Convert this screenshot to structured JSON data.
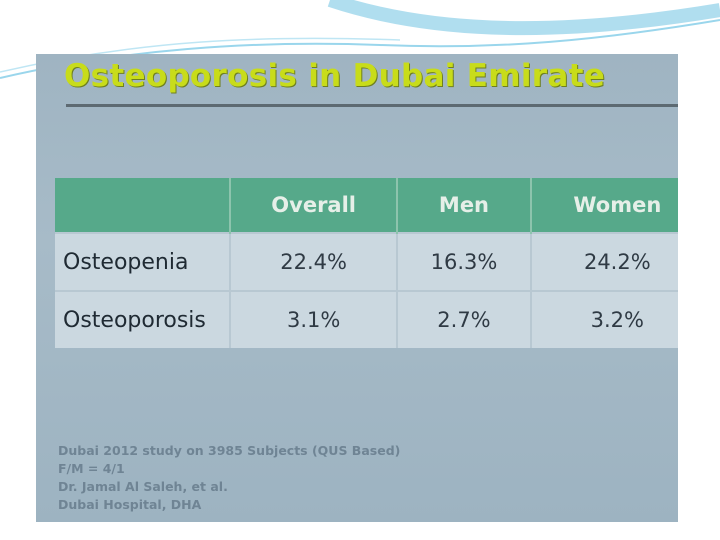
{
  "slide": {
    "title": "Osteoporosis in Dubai Emirate",
    "table": {
      "header": [
        "Overall",
        "Men",
        "Women"
      ],
      "rows": [
        [
          "Osteopenia",
          "22.4%",
          "16.3%",
          "24.2%"
        ],
        [
          "Osteoporosis",
          "3.1%",
          "2.7%",
          "3.2%"
        ]
      ]
    },
    "footnotes": [
      "Dubai  2012 study on 3985 Subjects (QUS Based)",
      "F/M = 4/1",
      "Dr. Jamal Al Saleh, et al.",
      "Dubai Hospital, DHA"
    ]
  }
}
